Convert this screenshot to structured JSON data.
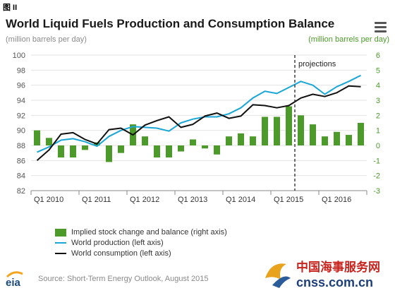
{
  "figure_label": "图 II",
  "title": "World Liquid Fuels Production and Consumption Balance",
  "units_left": "(million barrels per day)",
  "units_right": "(million barrels per day)",
  "projections_label": "projections",
  "source": "Source: Short-Term Energy Outlook, August 2015",
  "icons": {
    "menu": "hamburger-menu-icon",
    "eia_logo": "eia-logo",
    "watermark": "cnss-watermark"
  },
  "watermark": {
    "brand_cn": "中国海事服务网",
    "brand_url": "cnss.com.cn"
  },
  "legend": [
    {
      "label": "Implied stock change and balance (right axis)",
      "kind": "bar",
      "color": "#4c9a2a"
    },
    {
      "label": "World production (left axis)",
      "kind": "line",
      "color": "#1aa6d6"
    },
    {
      "label": "World consumption (left axis)",
      "kind": "line",
      "color": "#111111"
    }
  ],
  "chart_data": {
    "type": "bar",
    "title": "World Liquid Fuels Production and Consumption Balance",
    "left_axis": {
      "label": "(million barrels per day)",
      "ylim": [
        82,
        100
      ],
      "ticks": [
        82,
        84,
        86,
        88,
        90,
        92,
        94,
        96,
        98,
        100
      ]
    },
    "right_axis": {
      "label": "(million barrels per day)",
      "ylim": [
        -3,
        6
      ],
      "ticks": [
        -3,
        -2,
        -1,
        0,
        1,
        2,
        3,
        4,
        5,
        6
      ]
    },
    "x_tick_labels": [
      "Q1 2010",
      "Q1 2011",
      "Q1 2012",
      "Q1 2013",
      "Q1 2014",
      "Q1 2015",
      "Q1 2016"
    ],
    "quarters": [
      "Q1 2010",
      "Q2 2010",
      "Q3 2010",
      "Q4 2010",
      "Q1 2011",
      "Q2 2011",
      "Q3 2011",
      "Q4 2011",
      "Q1 2012",
      "Q2 2012",
      "Q3 2012",
      "Q4 2012",
      "Q1 2013",
      "Q2 2013",
      "Q3 2013",
      "Q4 2013",
      "Q1 2014",
      "Q2 2014",
      "Q3 2014",
      "Q4 2014",
      "Q1 2015",
      "Q2 2015",
      "Q3 2015",
      "Q4 2015",
      "Q1 2016",
      "Q2 2016",
      "Q3 2016",
      "Q4 2016"
    ],
    "projections_start": "Q3 2015",
    "grid": true,
    "legend_position": "bottom",
    "series": [
      {
        "name": "Implied stock change and balance (right axis)",
        "type": "bar",
        "axis": "right",
        "color": "#4c9a2a",
        "values": [
          1.0,
          0.5,
          -0.8,
          -0.8,
          -0.3,
          0.2,
          -1.1,
          -0.5,
          1.4,
          0.6,
          -0.8,
          -0.8,
          -0.4,
          0.4,
          -0.2,
          -0.6,
          0.6,
          0.8,
          0.6,
          1.9,
          1.9,
          2.6,
          2.0,
          1.4,
          0.6,
          0.9,
          0.7,
          1.5
        ]
      },
      {
        "name": "World production (left axis)",
        "type": "line",
        "axis": "left",
        "color": "#1aa6d6",
        "values": [
          87.1,
          87.8,
          88.7,
          88.9,
          88.5,
          87.9,
          89.2,
          90.0,
          90.5,
          90.4,
          90.3,
          89.9,
          91.0,
          91.5,
          91.8,
          91.8,
          92.2,
          93.0,
          94.3,
          95.2,
          94.9,
          95.7,
          96.5,
          96.0,
          94.8,
          95.8,
          96.5,
          97.3
        ]
      },
      {
        "name": "World consumption (left axis)",
        "type": "line",
        "axis": "left",
        "color": "#111111",
        "values": [
          86.0,
          87.4,
          89.5,
          89.7,
          88.8,
          88.2,
          90.1,
          90.3,
          89.4,
          90.7,
          91.3,
          91.8,
          90.4,
          90.8,
          91.9,
          92.3,
          91.6,
          91.9,
          93.4,
          93.3,
          93.0,
          93.3,
          94.3,
          94.8,
          94.5,
          95.0,
          95.9,
          95.8
        ]
      }
    ]
  }
}
